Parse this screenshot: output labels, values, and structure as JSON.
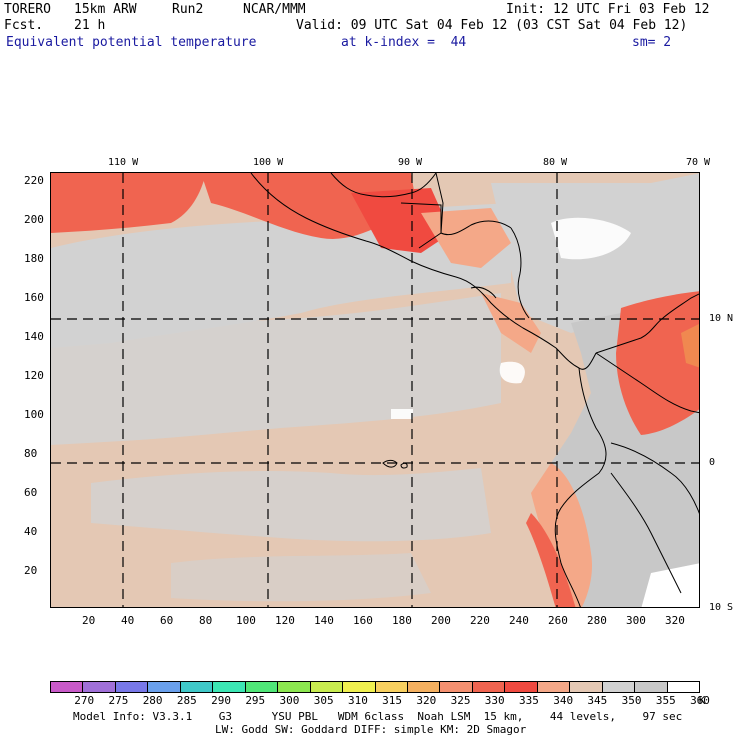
{
  "header": {
    "model": "TORERO",
    "resolution": "15km ARW",
    "run": "Run2",
    "org": "NCAR/MMM",
    "init": "Init: 12 UTC Fri 03 Feb 12",
    "fcst_label": "Fcst.",
    "fcst_value": "21 h",
    "valid": "Valid: 09 UTC Sat 04 Feb 12 (03 CST Sat 04 Feb 12)",
    "field": "Equivalent potential temperature",
    "level": "at k-index =  44",
    "smoothing": "sm= 2"
  },
  "map": {
    "top_lon_labels": [
      "110 W",
      "100 W",
      "90 W",
      "80 W",
      "70 W"
    ],
    "right_lat_labels": [
      "10 N",
      "0",
      "10 S"
    ],
    "left_ticks": [
      "220",
      "200",
      "180",
      "160",
      "140",
      "120",
      "100",
      "80",
      "60",
      "40",
      "20"
    ],
    "bottom_ticks": [
      "20",
      "40",
      "60",
      "80",
      "100",
      "120",
      "140",
      "160",
      "180",
      "200",
      "220",
      "240",
      "260",
      "280",
      "300",
      "320"
    ],
    "colors": {
      "ocean_base": "#e4c8b4",
      "gray_band": "#d2d2d2",
      "warm": "#f4a888",
      "hot": "#f06450",
      "hotter": "#f04a40",
      "white_patch": "#ffffff"
    }
  },
  "colorbar": {
    "labels": [
      "270",
      "275",
      "280",
      "285",
      "290",
      "295",
      "300",
      "305",
      "310",
      "315",
      "320",
      "325",
      "330",
      "335",
      "340",
      "345",
      "350",
      "355",
      "360",
      "K"
    ],
    "colors": [
      "#c85ac8",
      "#a070d8",
      "#7878e8",
      "#6aa0ec",
      "#40c8c8",
      "#3ce6b4",
      "#50e678",
      "#8ce650",
      "#c8ec50",
      "#f0f050",
      "#f8d060",
      "#f4b060",
      "#f49070",
      "#f06450",
      "#f04a40",
      "#f4a888",
      "#e4c8b4",
      "#d2d2d2",
      "#c8c8c8",
      "#ffffff"
    ]
  },
  "footer": {
    "line1": "Model Info: V3.3.1    G3      YSU PBL   WDM 6class  Noah LSM  15 km,    44 levels,    97 sec",
    "line2": "LW: Godd SW: Goddard DIFF: simple KM: 2D Smagor"
  }
}
